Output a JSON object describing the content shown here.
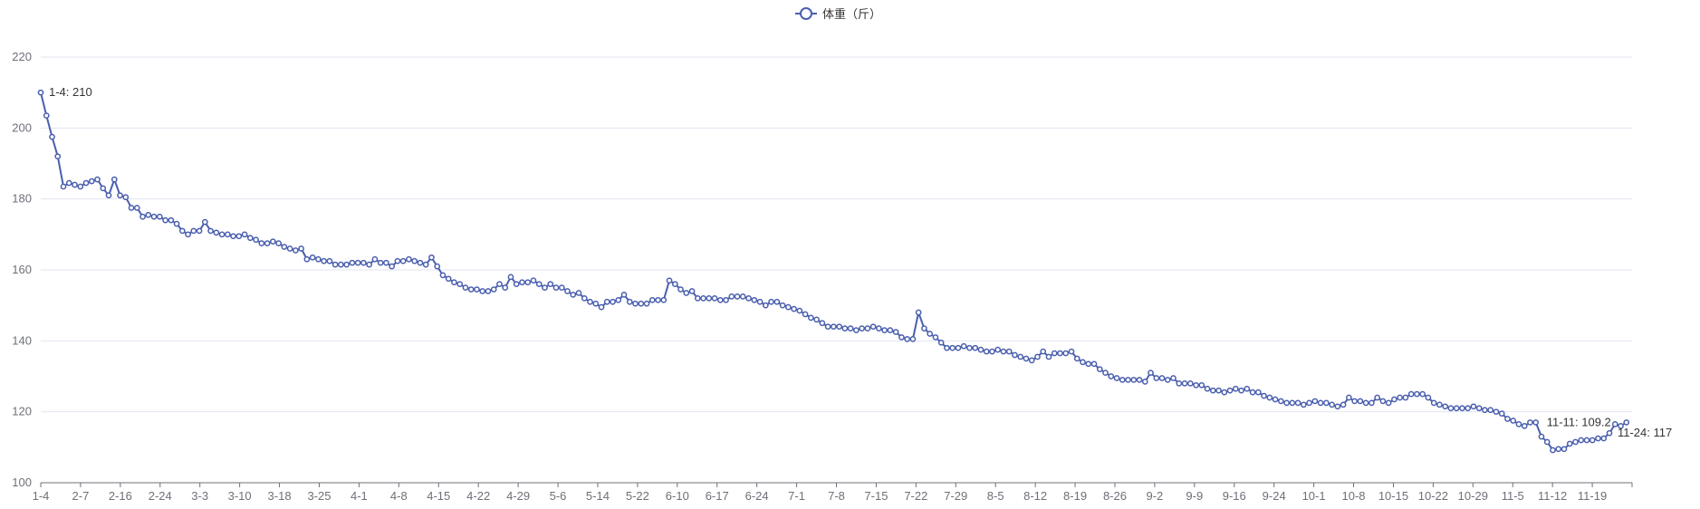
{
  "chart_data": {
    "type": "line",
    "title": "",
    "xlabel": "",
    "ylabel": "",
    "ylim": [
      100,
      220
    ],
    "yticks": [
      100,
      120,
      140,
      160,
      180,
      200,
      220
    ],
    "x_ticks": [
      "1-4",
      "2-7",
      "2-16",
      "2-24",
      "3-3",
      "3-10",
      "3-18",
      "3-25",
      "4-1",
      "4-8",
      "4-15",
      "4-22",
      "4-29",
      "5-6",
      "5-14",
      "5-22",
      "6-10",
      "6-17",
      "6-24",
      "7-1",
      "7-8",
      "7-15",
      "7-22",
      "7-29",
      "8-5",
      "8-12",
      "8-19",
      "8-26",
      "9-2",
      "9-9",
      "9-16",
      "9-24",
      "10-1",
      "10-8",
      "10-15",
      "10-22",
      "10-29",
      "11-5",
      "11-12",
      "11-19"
    ],
    "grid": true,
    "legend": {
      "position": "top-center",
      "entries": [
        "体重（斤）"
      ]
    },
    "series": [
      {
        "name": "体重（斤）",
        "color": "#4a5fae",
        "values": [
          210,
          203.5,
          197.5,
          192,
          183.5,
          184.5,
          184,
          183.5,
          184.5,
          185,
          185.5,
          183,
          181,
          185.5,
          181,
          180.5,
          177.5,
          177.5,
          175,
          175.5,
          175,
          175,
          174,
          174,
          173,
          171,
          170,
          171,
          171,
          173.5,
          171,
          170.5,
          170,
          170,
          169.5,
          169.5,
          170,
          169,
          168.5,
          167.5,
          167.5,
          168,
          167.5,
          166.5,
          166,
          165.5,
          166,
          163,
          163.5,
          163,
          162.5,
          162.5,
          161.5,
          161.5,
          161.5,
          162,
          162,
          162,
          161.5,
          163,
          162,
          162,
          161,
          162.5,
          162.5,
          163,
          162.5,
          162,
          161.5,
          163.5,
          161,
          158.5,
          157.5,
          156.5,
          156,
          155,
          154.5,
          154.5,
          154,
          154,
          154.5,
          156,
          155,
          158,
          156,
          156.5,
          156.5,
          157,
          156,
          155,
          156,
          155,
          155,
          154,
          153,
          153.5,
          152,
          151,
          150.5,
          149.5,
          151,
          151,
          151.5,
          153,
          151,
          150.5,
          150.5,
          150.5,
          151.5,
          151.5,
          151.5,
          157,
          156,
          154.5,
          153.5,
          154,
          152,
          152,
          152,
          152,
          151.5,
          151.5,
          152.5,
          152.5,
          152.5,
          152,
          151.5,
          151,
          150,
          151,
          151,
          150,
          149.5,
          149,
          148.5,
          147.5,
          146.5,
          146,
          145,
          144,
          144,
          144,
          143.5,
          143.5,
          143,
          143.5,
          143.5,
          144,
          143.5,
          143,
          143,
          142.5,
          141,
          140.5,
          140.5,
          148,
          143.5,
          142,
          141,
          139.5,
          138,
          138,
          138,
          138.5,
          138,
          138,
          137.5,
          137,
          137,
          137.5,
          137,
          137,
          136,
          135.5,
          135,
          134.5,
          135.5,
          137,
          135.5,
          136.5,
          136.5,
          136.5,
          137,
          135,
          134,
          133.5,
          133.5,
          132,
          131,
          130,
          129.5,
          129,
          129,
          129,
          129,
          128.5,
          131,
          129.5,
          129.5,
          129,
          129.5,
          128,
          128,
          128,
          127.5,
          127.5,
          126.5,
          126,
          126,
          125.5,
          126,
          126.5,
          126,
          126.5,
          125.5,
          125.5,
          124.5,
          124,
          123.5,
          123,
          122.5,
          122.5,
          122.5,
          122,
          122.5,
          123,
          122.5,
          122.5,
          122,
          121.5,
          122,
          124,
          123,
          123,
          122.5,
          122.5,
          124,
          123,
          122.5,
          123.5,
          124,
          124,
          125,
          125,
          125,
          124,
          122.5,
          122,
          121.5,
          121,
          121,
          121,
          121,
          121.5,
          121,
          120.5,
          120.5,
          120,
          119.5,
          118,
          117.5,
          116.5,
          116,
          117,
          117,
          113,
          111.5,
          109.2,
          109.5,
          109.5,
          111,
          111.5,
          112,
          112,
          112,
          112.5,
          112.5,
          114,
          116.5,
          116,
          117
        ]
      }
    ],
    "annotations": [
      {
        "text": "1-4: 210",
        "index": 0,
        "side": "right"
      },
      {
        "text": "11-11: 109.2",
        "index": 264,
        "side": "right-below"
      },
      {
        "text": "11-24: 117",
        "index": 277,
        "side": "right"
      }
    ]
  }
}
